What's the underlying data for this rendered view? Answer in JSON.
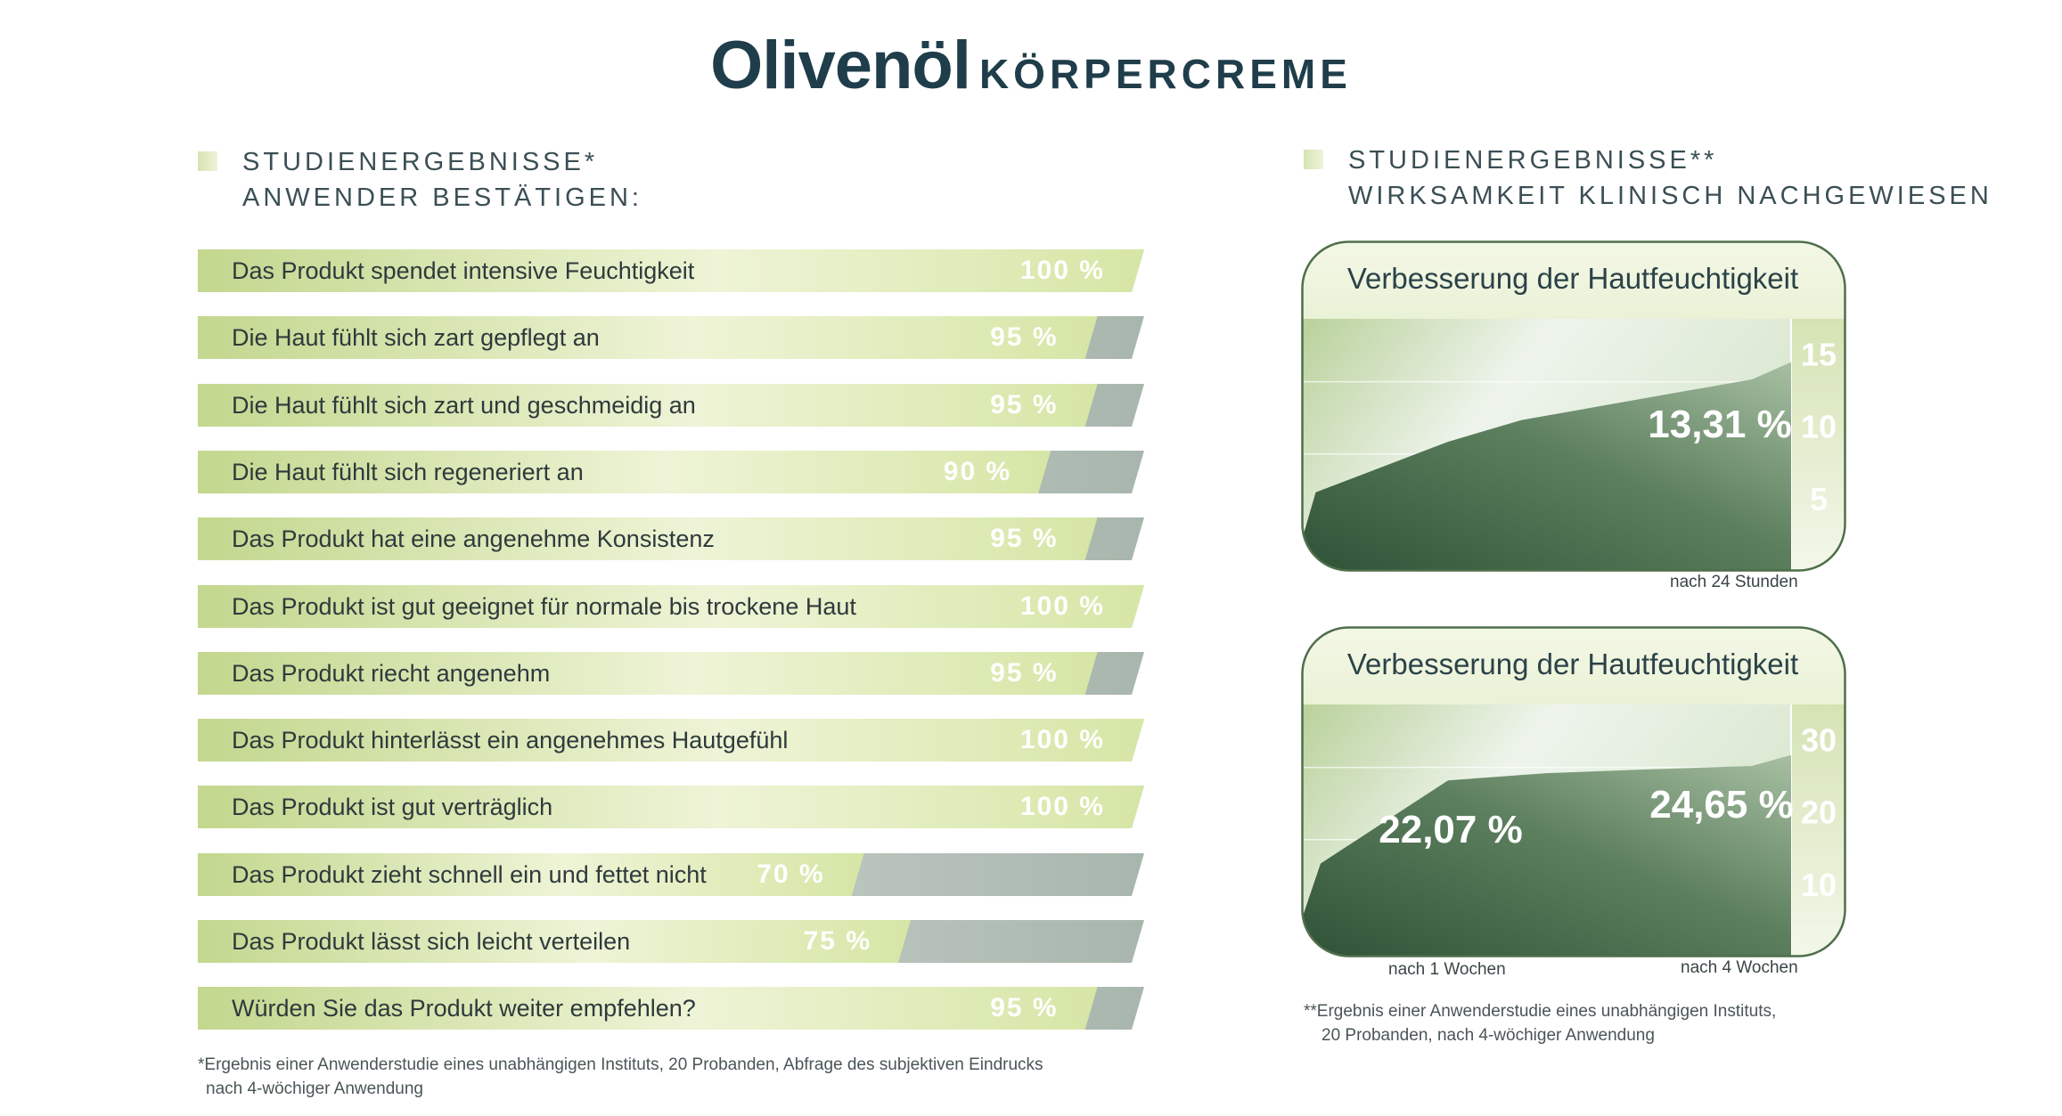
{
  "title": {
    "brand": "Olivenöl",
    "product": "KÖRPERCREME"
  },
  "left_section": {
    "line1": "STUDIENERGEBNISSE*",
    "line2": "ANWENDER BESTÄTIGEN:"
  },
  "right_section": {
    "line1": "STUDIENERGEBNISSE**",
    "line2": "WIRKSAMKEIT KLINISCH NACHGEWIESEN"
  },
  "chart_data": [
    {
      "type": "bar",
      "categories": [
        "Das Produkt spendet intensive Feuchtigkeit",
        "Die Haut fühlt sich zart gepflegt an",
        "Die Haut fühlt sich zart und geschmeidig an",
        "Die Haut fühlt sich regeneriert an",
        "Das Produkt hat eine angenehme Konsistenz",
        "Das Produkt ist gut geeignet für normale bis trockene Haut",
        "Das Produkt riecht angenehm",
        "Das Produkt hinterlässt ein angenehmes Hautgefühl",
        "Das Produkt ist gut verträglich",
        "Das Produkt zieht schnell ein und fettet nicht",
        "Das Produkt lässt sich leicht verteilen",
        "Würden Sie das Produkt weiter empfehlen?"
      ],
      "values": [
        100,
        95,
        95,
        90,
        95,
        100,
        95,
        100,
        100,
        70,
        75,
        95
      ],
      "value_labels": [
        "100 %",
        "95 %",
        "95 %",
        "90 %",
        "95 %",
        "100 %",
        "95 %",
        "100 %",
        "100 %",
        "70 %",
        "75 %",
        "95 %"
      ],
      "ylim": [
        0,
        100
      ],
      "colors": {
        "fill_start": "#c3d78e",
        "fill_end": "#eef4d6",
        "remainder": "#a8b6ad"
      }
    },
    {
      "type": "area",
      "title": "Verbesserung der Hautfeuchtigkeit",
      "x": [
        0,
        0.03,
        0.3,
        0.45,
        0.6,
        0.75,
        0.92,
        1.0
      ],
      "y": [
        2,
        5.5,
        9.0,
        10.5,
        11.4,
        12.3,
        13.31,
        14.5
      ],
      "yticks": [
        "15",
        "10",
        "5"
      ],
      "ylim": [
        0,
        17.5
      ],
      "annotation": "13,31 %",
      "xlabels": [
        "nach 24 Stunden"
      ]
    },
    {
      "type": "area",
      "title": "Verbesserung der Hautfeuchtigkeit",
      "x": [
        0,
        0.04,
        0.3,
        0.5,
        0.7,
        0.92,
        1.0
      ],
      "y": [
        5,
        13,
        24.5,
        25.5,
        26,
        26.5,
        28
      ],
      "yticks": [
        "30",
        "20",
        "10"
      ],
      "ylim": [
        0,
        35
      ],
      "annotations": [
        "22,07 %",
        "24,65 %"
      ],
      "xlabels": [
        "nach 1 Wochen",
        "nach 4 Wochen"
      ]
    }
  ],
  "footnote_left": {
    "line1": "*Ergebnis einer Anwenderstudie eines unabhängigen Instituts, 20 Probanden, Abfrage des subjektiven Eindrucks",
    "line2": "nach 4-wöchiger Anwendung"
  },
  "footnote_right": {
    "line1": "**Ergebnis einer Anwenderstudie eines unabhängigen Instituts,",
    "line2": "20 Probanden, nach 4-wöchiger Anwendung"
  }
}
